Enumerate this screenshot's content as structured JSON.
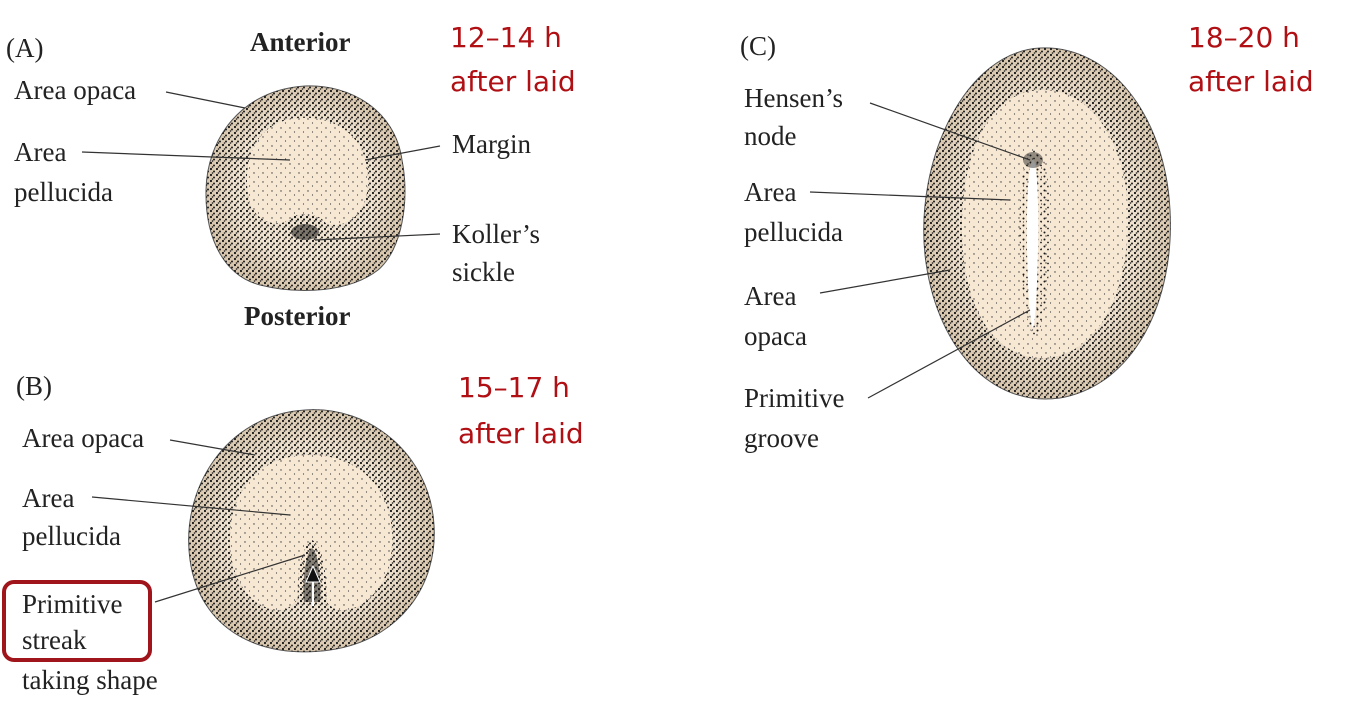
{
  "panel_a": {
    "letter": "(A)",
    "anterior": "Anterior",
    "posterior": "Posterior",
    "area_opaca": "Area opaca",
    "area_pellucida_1": "Area",
    "area_pellucida_2": "pellucida",
    "margin": "Margin",
    "koller_1": "Koller’s",
    "koller_2": "sickle",
    "time_1": "12–14 h",
    "time_2": "after laid"
  },
  "panel_b": {
    "letter": "(B)",
    "area_opaca": "Area opaca",
    "area_pellucida_1": "Area",
    "area_pellucida_2": "pellucida",
    "streak_1": "Primitive",
    "streak_2": "streak",
    "streak_3": "taking shape",
    "time_1": "15–17 h",
    "time_2": "after laid"
  },
  "panel_c": {
    "letter": "(C)",
    "hensen_1": "Hensen’s",
    "hensen_2": "node",
    "area_pellucida_1": "Area",
    "area_pellucida_2": "pellucida",
    "area_opaca_1": "Area",
    "area_opaca_2": "opaca",
    "groove_1": "Primitive",
    "groove_2": "groove",
    "time_1": "18–20 h",
    "time_2": "after laid"
  },
  "colors": {
    "time_label": "#b00f14",
    "highlight_box": "#a0141b",
    "embryo_fill": "#f7e8d4",
    "stipple": "#1a1a1a"
  }
}
